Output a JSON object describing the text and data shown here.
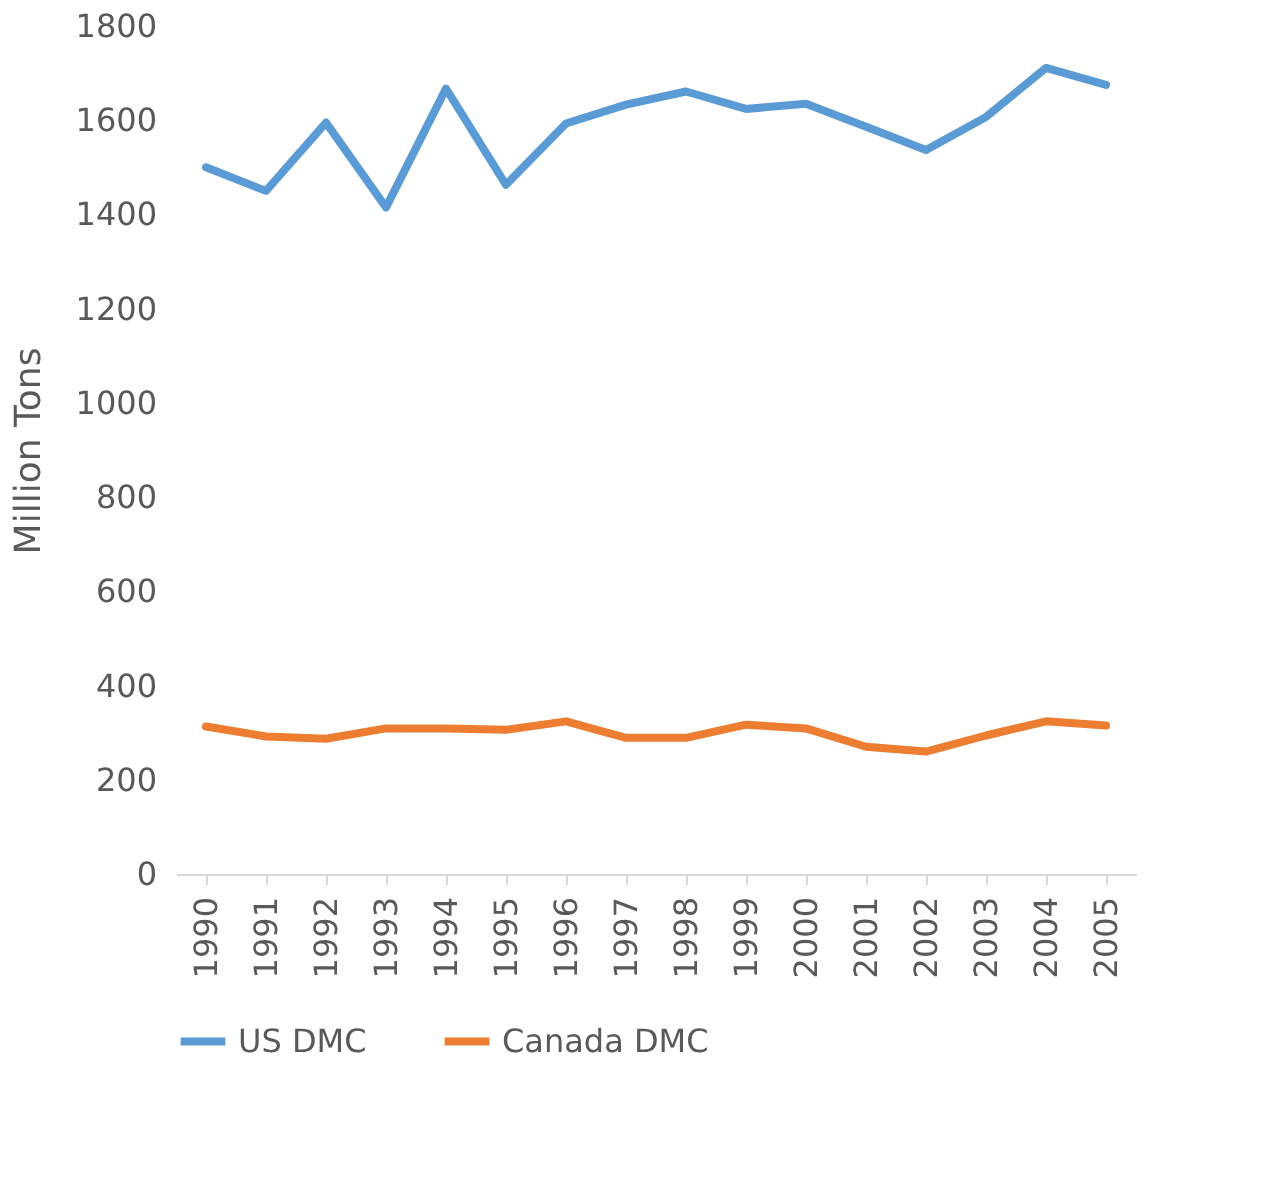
{
  "chart_data": {
    "type": "line",
    "ylabel": "Million Tons",
    "categories": [
      "1990",
      "1991",
      "1992",
      "1993",
      "1994",
      "1995",
      "1996",
      "1997",
      "1998",
      "1999",
      "2000",
      "2001",
      "2002",
      "2003",
      "2004",
      "2005"
    ],
    "series": [
      {
        "name": "US DMC",
        "color": "#5b9bd5",
        "values": [
          1500,
          1450,
          1595,
          1415,
          1667,
          1463,
          1593,
          1633,
          1661,
          1624,
          1635,
          1586,
          1537,
          1607,
          1711,
          1675
        ]
      },
      {
        "name": "Canada DMC",
        "color": "#ed7d31",
        "values": [
          313,
          292,
          287,
          309,
          309,
          306,
          324,
          289,
          289,
          317,
          309,
          270,
          260,
          294,
          324,
          315
        ]
      }
    ],
    "ylim": [
      0,
      1800
    ],
    "yticks": [
      0,
      200,
      400,
      600,
      800,
      1000,
      1200,
      1400,
      1600,
      1800
    ],
    "grid": false,
    "legend": "bottom",
    "marker": "none",
    "line_style": "solid"
  }
}
